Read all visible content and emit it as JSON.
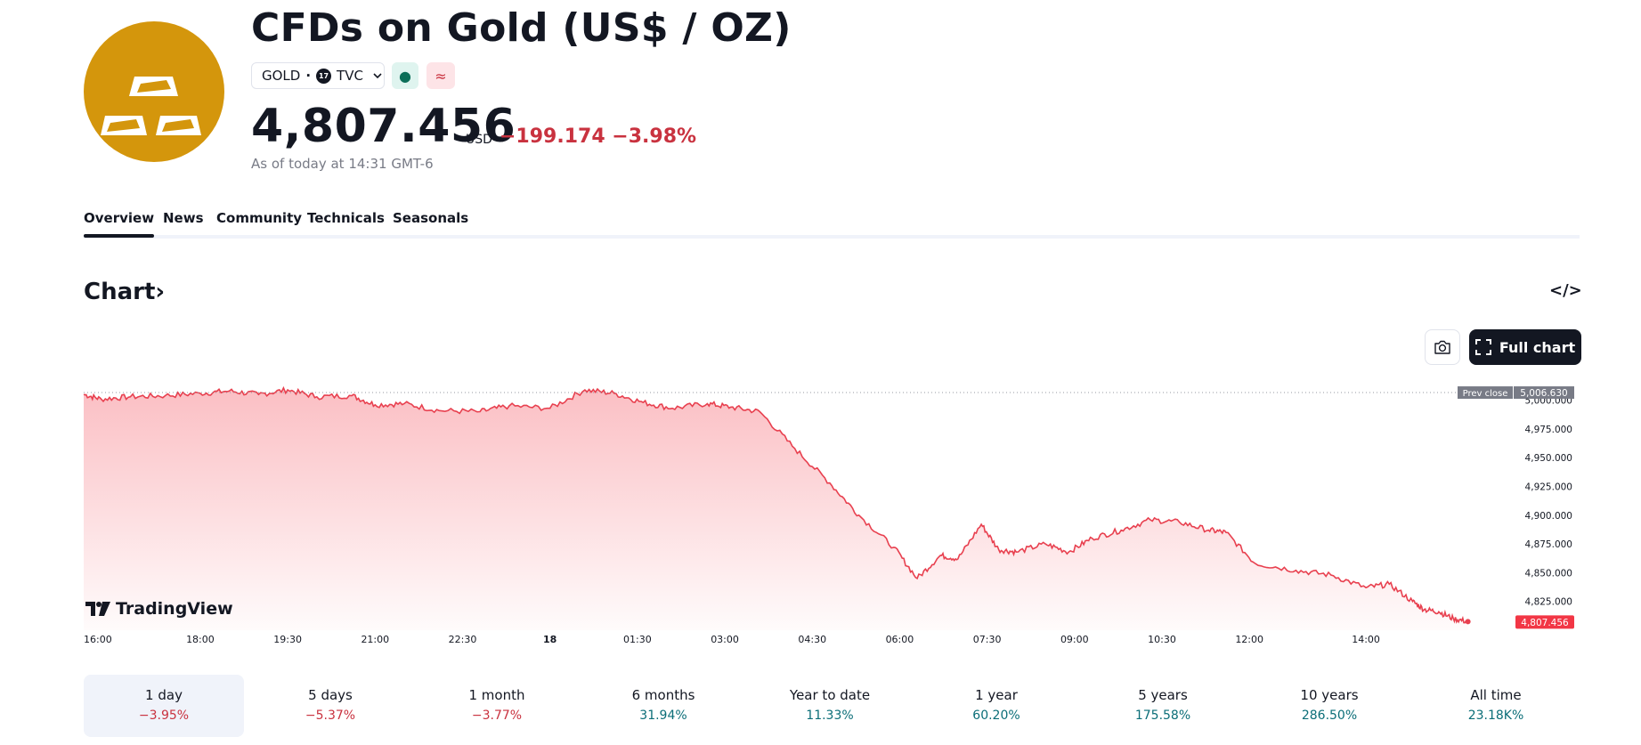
{
  "header": {
    "title": "CFDs on Gold (US$ / OZ)",
    "symbol": "GOLD",
    "exchange": "TVC",
    "exchange_badge": "17",
    "market_status_icon": "●",
    "delayed_icon": "≈",
    "price": "4,807.456",
    "currency": "USD",
    "change": "−199.174 −3.98%",
    "as_of": "As of today at 14:31 GMT-6"
  },
  "tabs": [
    "Overview",
    "News",
    "Community",
    "Technicals",
    "Seasonals"
  ],
  "chart_section": {
    "heading": "Chart",
    "embed_icon": "</>",
    "full_chart_label": "Full chart",
    "brand": "TradingView"
  },
  "colors": {
    "accent_negative": "#c9323f",
    "accent_positive": "#0b6e78",
    "logo_bg": "#d4960c",
    "line": "#e8404f"
  },
  "chart_data": {
    "type": "area",
    "title": "",
    "x_tick_labels": [
      "16:00",
      "18:00",
      "19:30",
      "21:00",
      "22:30",
      "18",
      "01:30",
      "03:00",
      "04:30",
      "06:00",
      "07:30",
      "09:00",
      "10:30",
      "12:00",
      "14:00"
    ],
    "y_tick_labels": [
      "5,000.000",
      "4,975.000",
      "4,950.000",
      "4,925.000",
      "4,900.000",
      "4,875.000",
      "4,850.000",
      "4,825.000"
    ],
    "y_ticks": [
      5000,
      4975,
      4950,
      4925,
      4900,
      4875,
      4850,
      4825
    ],
    "ylim": [
      4800,
      5009
    ],
    "prev_close_label": "Prev close",
    "prev_close_text": "5,006.630",
    "prev_close": 5006.63,
    "last_price_text": "4,807.456",
    "last_price": 4807.456,
    "series": [
      {
        "name": "GOLD",
        "x_hours": [
          0,
          0.3,
          0.8,
          1.4,
          2.0,
          2.5,
          3.0,
          3.5,
          4.0,
          4.6,
          5.0,
          5.5,
          6.1,
          6.8,
          7.3,
          8.0,
          8.6,
          9.1,
          9.6,
          10.1,
          10.7,
          11.1,
          11.6,
          12.2,
          12.8,
          13.3,
          13.9,
          14.3,
          14.7,
          15.0,
          15.4,
          15.7,
          16.0,
          16.5,
          16.9,
          17.3,
          17.8,
          18.3,
          18.8,
          19.3,
          19.6,
          20.1,
          20.8,
          21.4,
          22.0,
          22.4,
          22.8,
          23.0,
          23.25,
          23.5,
          23.75
        ],
        "values": [
          5005,
          5001,
          5003,
          5004,
          5006,
          5008,
          5005,
          5009,
          5003,
          5004,
          4996,
          4997,
          4991,
          4990,
          4995,
          4993,
          5009,
          5006,
          4998,
          4993,
          4997,
          4994,
          4990,
          4958,
          4928,
          4900,
          4872,
          4845,
          4865,
          4862,
          4892,
          4870,
          4868,
          4875,
          4868,
          4880,
          4887,
          4896,
          4894,
          4887,
          4885,
          4858,
          4852,
          4848,
          4837,
          4840,
          4825,
          4818,
          4816,
          4810,
          4807.456
        ]
      }
    ]
  },
  "periods": [
    {
      "label": "1 day",
      "change": "−3.95%",
      "dir": "neg"
    },
    {
      "label": "5 days",
      "change": "−5.37%",
      "dir": "neg"
    },
    {
      "label": "1 month",
      "change": "−3.77%",
      "dir": "neg"
    },
    {
      "label": "6 months",
      "change": "31.94%",
      "dir": "pos"
    },
    {
      "label": "Year to date",
      "change": "11.33%",
      "dir": "pos"
    },
    {
      "label": "1 year",
      "change": "60.20%",
      "dir": "pos"
    },
    {
      "label": "5 years",
      "change": "175.58%",
      "dir": "pos"
    },
    {
      "label": "10 years",
      "change": "286.50%",
      "dir": "pos"
    },
    {
      "label": "All time",
      "change": "23.18K%",
      "dir": "pos"
    }
  ]
}
